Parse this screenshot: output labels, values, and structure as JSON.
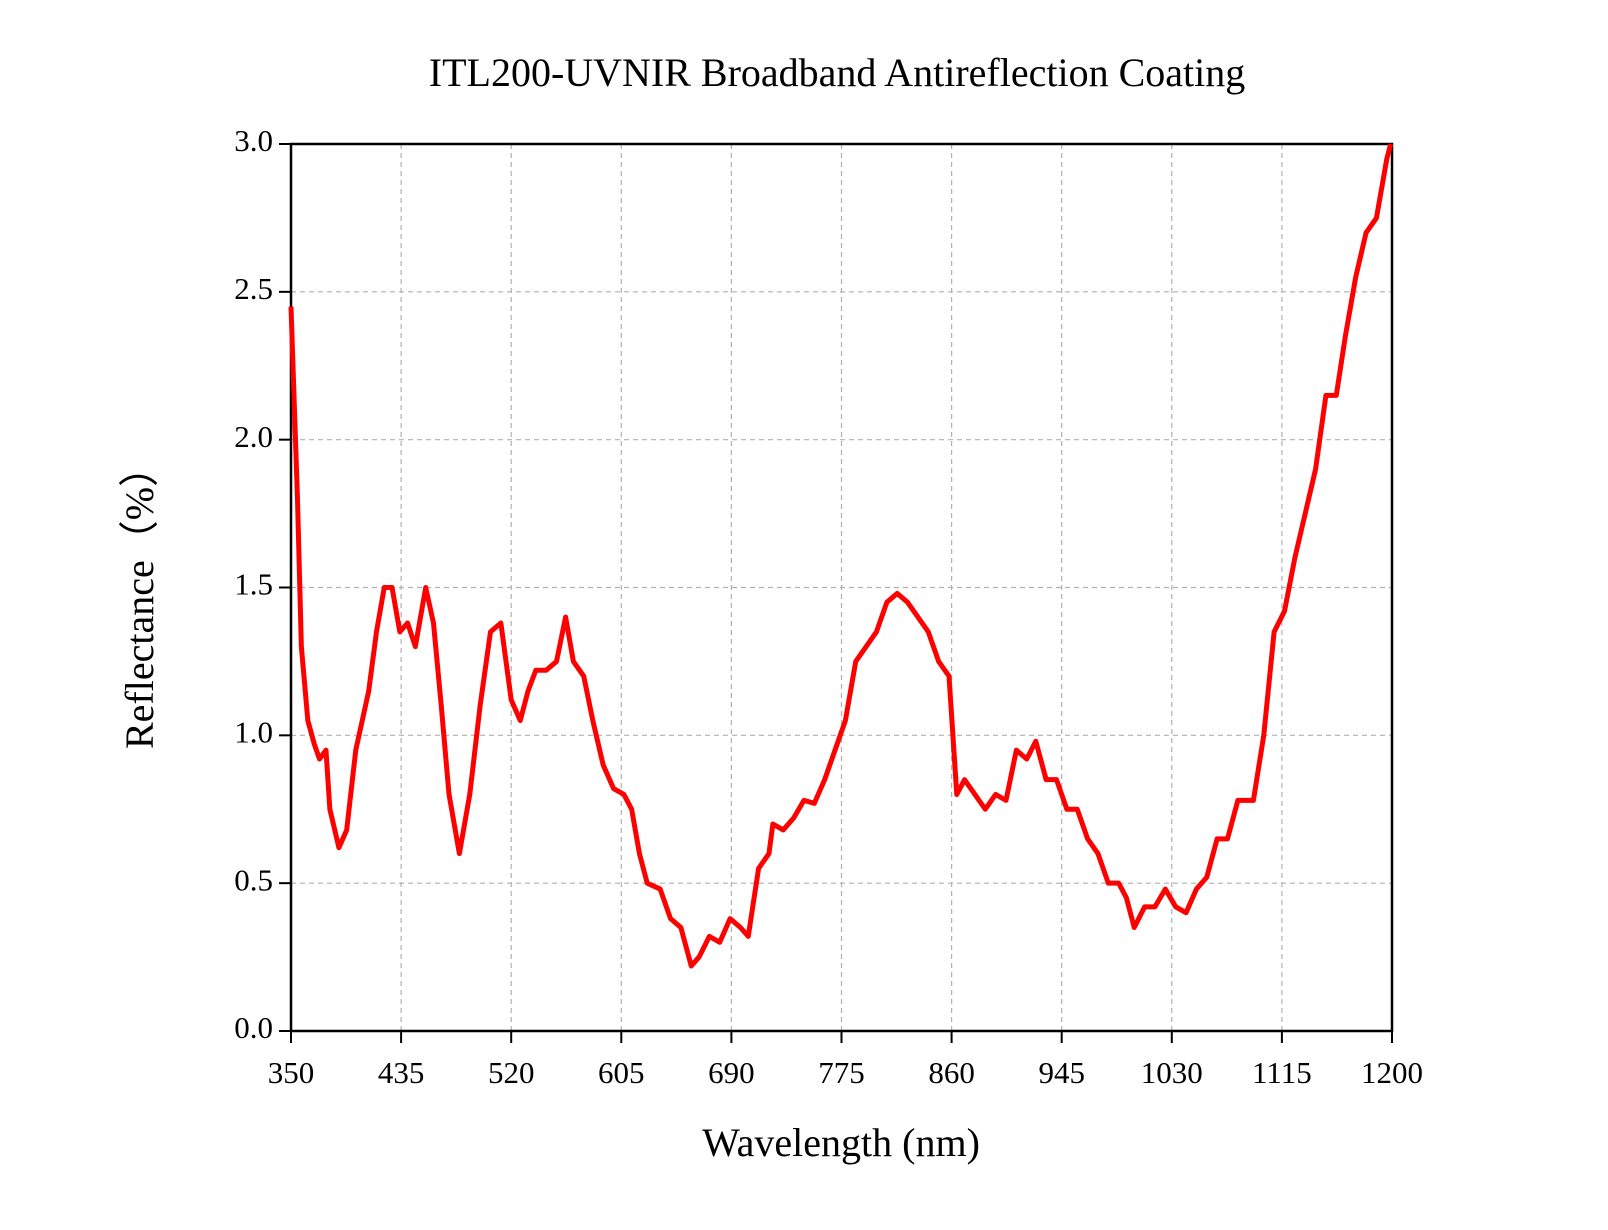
{
  "chart_data": {
    "type": "line",
    "title": "ITL200-UVNIR Broadband Antireflection Coating",
    "x_label": "Wavelength (nm)",
    "y_label": "Reflectance（%）",
    "color": "#ff0000",
    "grid": true,
    "xlim": [
      350,
      1200
    ],
    "xticks": [
      350,
      435,
      520,
      605,
      690,
      775,
      860,
      945,
      1030,
      1115,
      1200
    ],
    "ylim": [
      0,
      3
    ],
    "yticks": [
      {
        "value": 0,
        "label": "0.0"
      },
      0.5,
      {
        "value": 1,
        "label": "1.0"
      },
      1.5,
      {
        "value": 2,
        "label": "2.0"
      },
      2.5,
      {
        "value": 3,
        "label": "3.0"
      }
    ],
    "x": [
      350,
      355,
      358,
      363,
      368,
      372,
      377,
      380,
      387,
      393,
      400,
      410,
      416,
      422,
      428,
      434,
      440,
      446,
      454,
      460,
      466,
      472,
      480,
      488,
      496,
      504,
      512,
      520,
      527,
      533,
      539,
      547,
      555,
      562,
      568,
      576,
      583,
      591,
      599,
      607,
      613,
      619,
      625,
      635,
      643,
      651,
      659,
      665,
      673,
      681,
      689,
      697,
      703,
      711,
      719,
      722,
      730,
      738,
      746,
      754,
      762,
      770,
      778,
      786,
      794,
      802,
      810,
      818,
      826,
      834,
      842,
      850,
      858,
      864,
      870,
      878,
      886,
      894,
      902,
      910,
      918,
      925,
      933,
      941,
      949,
      957,
      965,
      973,
      981,
      989,
      995,
      1001,
      1009,
      1017,
      1025,
      1033,
      1041,
      1049,
      1057,
      1065,
      1073,
      1081,
      1093,
      1101,
      1109,
      1117,
      1125,
      1133,
      1141,
      1149,
      1157,
      1164,
      1172,
      1180,
      1188,
      1196,
      1199
    ],
    "values": [
      2.45,
      1.8,
      1.3,
      1.05,
      0.97,
      0.92,
      0.95,
      0.75,
      0.62,
      0.68,
      0.95,
      1.15,
      1.35,
      1.5,
      1.5,
      1.35,
      1.38,
      1.3,
      1.5,
      1.38,
      1.1,
      0.8,
      0.6,
      0.8,
      1.1,
      1.35,
      1.38,
      1.12,
      1.05,
      1.15,
      1.22,
      1.22,
      1.25,
      1.4,
      1.25,
      1.2,
      1.05,
      0.9,
      0.82,
      0.8,
      0.75,
      0.6,
      0.5,
      0.48,
      0.38,
      0.35,
      0.22,
      0.25,
      0.32,
      0.3,
      0.38,
      0.35,
      0.32,
      0.55,
      0.6,
      0.7,
      0.68,
      0.72,
      0.78,
      0.77,
      0.85,
      0.95,
      1.05,
      1.25,
      1.3,
      1.35,
      1.45,
      1.48,
      1.45,
      1.4,
      1.35,
      1.25,
      1.2,
      0.8,
      0.85,
      0.8,
      0.75,
      0.8,
      0.78,
      0.95,
      0.92,
      0.98,
      0.85,
      0.85,
      0.75,
      0.75,
      0.65,
      0.6,
      0.5,
      0.5,
      0.45,
      0.35,
      0.42,
      0.42,
      0.48,
      0.42,
      0.4,
      0.48,
      0.52,
      0.65,
      0.65,
      0.78,
      0.78,
      1.0,
      1.35,
      1.42,
      1.6,
      1.75,
      1.9,
      2.15,
      2.15,
      2.35,
      2.55,
      2.7,
      2.75,
      2.95,
      3.0
    ]
  }
}
